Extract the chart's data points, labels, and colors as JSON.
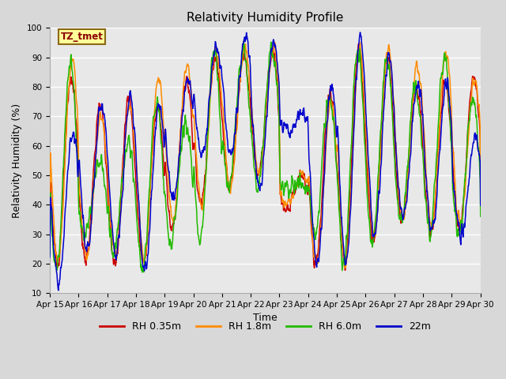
{
  "title": "Relativity Humidity Profile",
  "xlabel": "Time",
  "ylabel": "Relativity Humidity (%)",
  "ylim": [
    10,
    100
  ],
  "annotation": "TZ_tmet",
  "annotation_color": "#8B0000",
  "annotation_bg": "#FFFF99",
  "annotation_border": "#8B6914",
  "series": [
    {
      "label": "RH 0.35m",
      "color": "#CC0000"
    },
    {
      "label": "RH 1.8m",
      "color": "#FF8C00"
    },
    {
      "label": "RH 6.0m",
      "color": "#22BB00"
    },
    {
      "label": "22m",
      "color": "#0000CC"
    }
  ],
  "xtick_labels": [
    "Apr 15",
    "Apr 16",
    "Apr 17",
    "Apr 18",
    "Apr 19",
    "Apr 20",
    "Apr 21",
    "Apr 22",
    "Apr 23",
    "Apr 24",
    "Apr 25",
    "Apr 26",
    "Apr 27",
    "Apr 28",
    "Apr 29",
    "Apr 30"
  ],
  "title_fontsize": 11,
  "axis_fontsize": 9,
  "tick_fontsize": 7.5,
  "legend_fontsize": 9,
  "figsize": [
    6.4,
    4.8
  ],
  "dpi": 100
}
